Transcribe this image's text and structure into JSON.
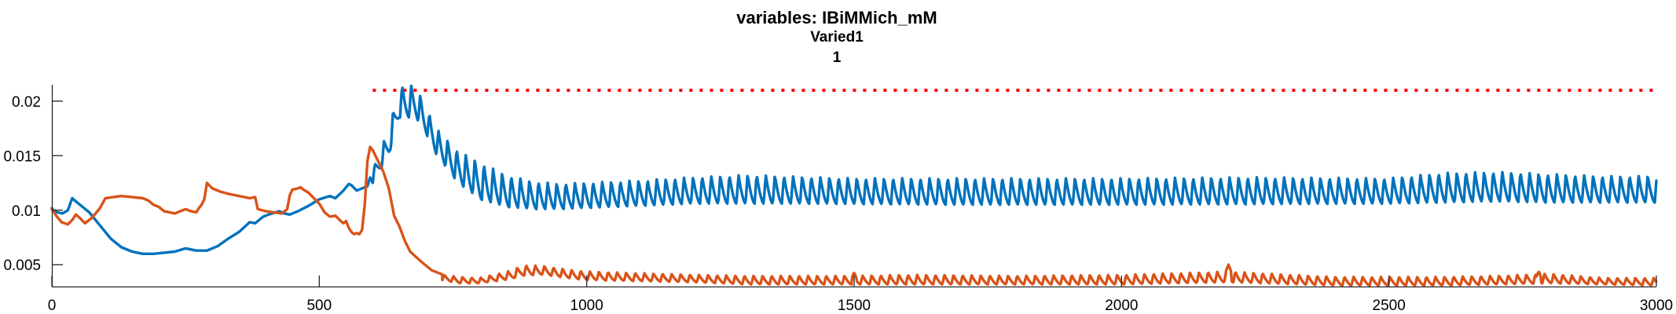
{
  "chart_data": {
    "type": "line",
    "title": [
      "variables: IBiMMich_mM",
      "Varied1",
      "1"
    ],
    "xlabel": "",
    "ylabel": "",
    "xlim": [
      0,
      3000
    ],
    "ylim": [
      0.003,
      0.0215
    ],
    "xticks": [
      0,
      500,
      1000,
      1500,
      2000,
      2500,
      3000
    ],
    "xtick_labels": [
      "0",
      "500",
      "1000",
      "1500",
      "2000",
      "2500",
      "3000"
    ],
    "yticks": [
      0.005,
      0.01,
      0.015,
      0.02
    ],
    "ytick_labels": [
      "0.005",
      "0.01",
      "0.015",
      "0.02"
    ],
    "grid": false,
    "colors": {
      "blue": "#0072BD",
      "orange": "#D95319",
      "red": "#FF0000"
    },
    "reference_line": {
      "y": 0.021,
      "x": [
        600,
        3000
      ],
      "style": "dotted",
      "color": "#FF0000"
    },
    "series": [
      {
        "color": "#0072BD",
        "style": "solid",
        "segments": [
          {
            "kind": "points",
            "x": [
              0,
              10,
              20,
              30,
              38,
              45,
              55,
              70,
              90,
              110,
              130,
              150,
              170,
              190,
              210,
              230,
              250,
              260,
              270,
              290,
              310,
              330,
              350,
              370,
              380,
              395,
              405,
              425,
              435,
              445,
              460,
              480,
              500,
              520,
              530,
              545,
              555,
              560,
              570,
              590,
              595
            ],
            "y": [
              0.0101,
              0.0098,
              0.0097,
              0.01,
              0.0111,
              0.0108,
              0.0104,
              0.0098,
              0.0086,
              0.0074,
              0.0066,
              0.0062,
              0.006,
              0.006,
              0.0061,
              0.0062,
              0.0065,
              0.0064,
              0.0063,
              0.0063,
              0.0067,
              0.0074,
              0.008,
              0.0089,
              0.0088,
              0.0094,
              0.0096,
              0.0099,
              0.0097,
              0.0096,
              0.0099,
              0.0104,
              0.011,
              0.0113,
              0.0111,
              0.0118,
              0.0124,
              0.0123,
              0.0118,
              0.0122,
              0.013
            ]
          },
          {
            "kind": "sawtooth",
            "x_start": 600,
            "x_end": 3000,
            "period": 17,
            "peaks": [
              [
                600,
                0.0138
              ],
              [
                630,
                0.0175
              ],
              [
                650,
                0.0215
              ],
              [
                680,
                0.0215
              ],
              [
                700,
                0.0195
              ],
              [
                720,
                0.0175
              ],
              [
                760,
                0.0155
              ],
              [
                800,
                0.0145
              ],
              [
                850,
                0.0133
              ],
              [
                900,
                0.0127
              ],
              [
                950,
                0.0125
              ],
              [
                1000,
                0.0126
              ],
              [
                1100,
                0.0128
              ],
              [
                1200,
                0.0131
              ],
              [
                1300,
                0.0133
              ],
              [
                1500,
                0.013
              ],
              [
                1700,
                0.013
              ],
              [
                2000,
                0.013
              ],
              [
                2250,
                0.0131
              ],
              [
                2500,
                0.013
              ],
              [
                2600,
                0.0135
              ],
              [
                2700,
                0.0136
              ],
              [
                2800,
                0.0134
              ],
              [
                2900,
                0.0132
              ],
              [
                3000,
                0.0132
              ]
            ],
            "troughs": [
              [
                600,
                0.0125
              ],
              [
                630,
                0.015
              ],
              [
                650,
                0.0185
              ],
              [
                680,
                0.0185
              ],
              [
                700,
                0.017
              ],
              [
                720,
                0.015
              ],
              [
                760,
                0.0125
              ],
              [
                800,
                0.011
              ],
              [
                850,
                0.0103
              ],
              [
                900,
                0.0101
              ],
              [
                950,
                0.0101
              ],
              [
                1000,
                0.0102
              ],
              [
                1200,
                0.0106
              ],
              [
                1400,
                0.0106
              ],
              [
                1700,
                0.0105
              ],
              [
                2000,
                0.0105
              ],
              [
                2500,
                0.0106
              ],
              [
                2700,
                0.0108
              ],
              [
                2800,
                0.0107
              ],
              [
                3000,
                0.0107
              ]
            ]
          }
        ]
      },
      {
        "color": "#D95319",
        "style": "solid",
        "segments": [
          {
            "kind": "points",
            "x": [
              0,
              8,
              18,
              30,
              38,
              45,
              52,
              62,
              75,
              90,
              100,
              115,
              130,
              150,
              170,
              180,
              190,
              200,
              210,
              230,
              240,
              250,
              260,
              270,
              275,
              280,
              285,
              290,
              300,
              315,
              330,
              350,
              370,
              380,
              385,
              400,
              430,
              440,
              445,
              450,
              460,
              465,
              470,
              480,
              500,
              510,
              520,
              530,
              540,
              545,
              550,
              555,
              560,
              565,
              570,
              575,
              580,
              585,
              590,
              595,
              600,
              603,
              610,
              620,
              630,
              640,
              650,
              660,
              670,
              690,
              710,
              730
            ],
            "y": [
              0.0102,
              0.0095,
              0.0089,
              0.0087,
              0.0091,
              0.0096,
              0.0093,
              0.0088,
              0.0093,
              0.0102,
              0.0111,
              0.0112,
              0.0113,
              0.0112,
              0.0111,
              0.0109,
              0.0105,
              0.0103,
              0.0099,
              0.0097,
              0.0099,
              0.0101,
              0.0099,
              0.0098,
              0.0102,
              0.0105,
              0.011,
              0.0125,
              0.012,
              0.0117,
              0.0115,
              0.0113,
              0.0111,
              0.0112,
              0.0101,
              0.0099,
              0.0097,
              0.0101,
              0.0114,
              0.0119,
              0.012,
              0.0121,
              0.0119,
              0.0116,
              0.0106,
              0.0098,
              0.0094,
              0.0095,
              0.009,
              0.0088,
              0.009,
              0.0084,
              0.008,
              0.0078,
              0.0079,
              0.0078,
              0.0082,
              0.0105,
              0.0145,
              0.0158,
              0.0155,
              0.0152,
              0.0145,
              0.0135,
              0.012,
              0.0095,
              0.0085,
              0.0072,
              0.0062,
              0.0053,
              0.0045,
              0.0041
            ]
          },
          {
            "kind": "sawtooth",
            "x_start": 730,
            "x_end": 3000,
            "period": 17,
            "peaks": [
              [
                730,
                0.0041
              ],
              [
                760,
                0.0039
              ],
              [
                800,
                0.0038
              ],
              [
                860,
                0.0045
              ],
              [
                880,
                0.005
              ],
              [
                920,
                0.0049
              ],
              [
                960,
                0.0046
              ],
              [
                1000,
                0.0044
              ],
              [
                1200,
                0.0041
              ],
              [
                1300,
                0.004
              ],
              [
                1500,
                0.004
              ],
              [
                1600,
                0.0041
              ],
              [
                1800,
                0.004
              ],
              [
                2000,
                0.0041
              ],
              [
                2200,
                0.0044
              ],
              [
                2400,
                0.0039
              ],
              [
                2600,
                0.0039
              ],
              [
                2700,
                0.004
              ],
              [
                2800,
                0.0042
              ],
              [
                2900,
                0.0038
              ],
              [
                3000,
                0.0038
              ]
            ],
            "troughs": [
              [
                730,
                0.0036
              ],
              [
                760,
                0.0033
              ],
              [
                800,
                0.0033
              ],
              [
                860,
                0.0037
              ],
              [
                880,
                0.004
              ],
              [
                920,
                0.0041
              ],
              [
                960,
                0.0038
              ],
              [
                1000,
                0.0036
              ],
              [
                1200,
                0.0034
              ],
              [
                1300,
                0.0032
              ],
              [
                1500,
                0.0032
              ],
              [
                1800,
                0.0032
              ],
              [
                2000,
                0.0032
              ],
              [
                2200,
                0.0034
              ],
              [
                2400,
                0.0031
              ],
              [
                2600,
                0.0031
              ],
              [
                2800,
                0.0033
              ],
              [
                3000,
                0.0031
              ]
            ]
          }
        ],
        "spikes": [
          [
            1500,
            0.0043
          ],
          [
            2200,
            0.005
          ],
          [
            2780,
            0.0044
          ]
        ]
      }
    ]
  }
}
